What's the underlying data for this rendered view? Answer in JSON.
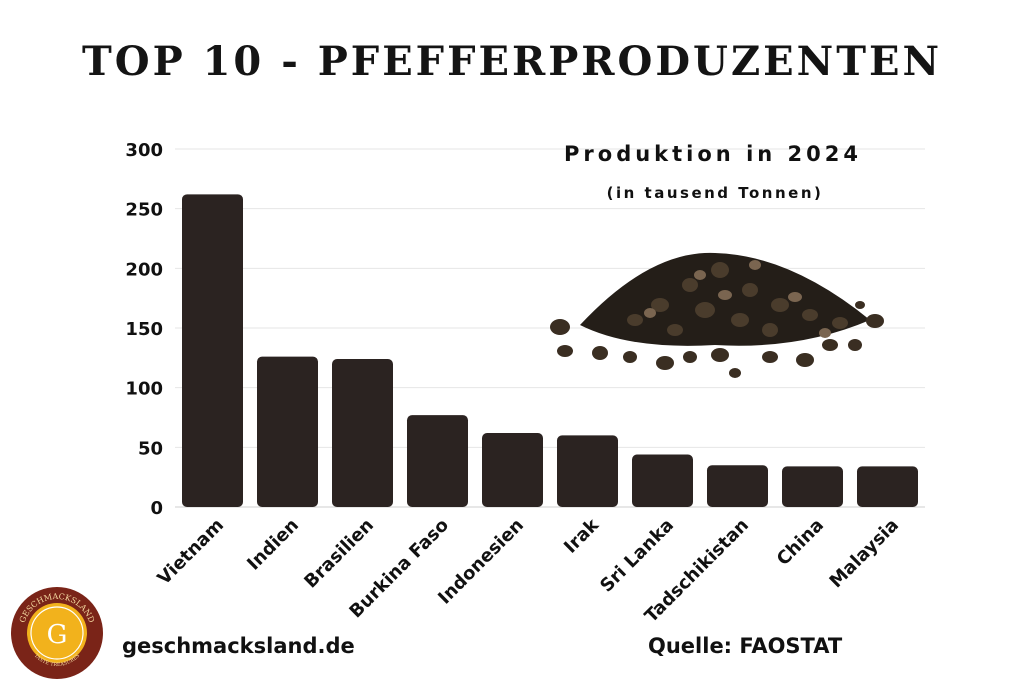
{
  "title": "TOP 10 - PFEFFERPRODUZENTEN",
  "subtitle": "Produktion in 2024",
  "unit_note": "(in tausend Tonnen)",
  "footer": {
    "website": "geschmacksland.de",
    "source": "Quelle: FAOSTAT"
  },
  "logo": {
    "ring_text": "GESCHMACKSLAND",
    "tagline": "TASTE TREASURES",
    "letter": "G"
  },
  "icons": [
    "geschmacksland-logo-icon",
    "pepper-pile-icon"
  ],
  "colors": {
    "bar": "#2b2321",
    "grid": "#e6e6e6",
    "text": "#111111",
    "logo_ring": "#7a2418",
    "logo_center": "#f2b21c"
  },
  "chart_data": {
    "type": "bar",
    "title": "TOP 10 - PFEFFERPRODUZENTEN",
    "subtitle": "Produktion in 2024",
    "ylabel": "",
    "xlabel": "",
    "categories": [
      "Vietnam",
      "Indien",
      "Brasilien",
      "Burkina Faso",
      "Indonesien",
      "Irak",
      "Sri Lanka",
      "Tadschikistan",
      "China",
      "Malaysia"
    ],
    "values": [
      262,
      126,
      124,
      77,
      62,
      60,
      44,
      35,
      34,
      34
    ],
    "ylim": [
      0,
      300
    ],
    "yticks": [
      0,
      50,
      100,
      150,
      200,
      250,
      300
    ],
    "grid": true,
    "legend": "none"
  }
}
